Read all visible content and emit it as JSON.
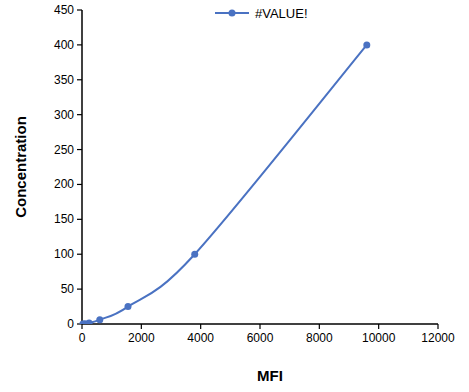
{
  "chart_data": {
    "type": "line",
    "x_label": "MFI",
    "y_label": "Concentration",
    "x": [
      30,
      100,
      240,
      600,
      1550,
      3800,
      9600
    ],
    "series": [
      {
        "name": "#VALUE!",
        "color": "#4a72c2",
        "marker": "circle",
        "values": [
          0,
          0.39,
          1.56,
          6.25,
          25,
          100,
          400
        ]
      }
    ],
    "xlim": [
      0,
      12000
    ],
    "ylim": [
      0,
      450
    ],
    "xticks": [
      0,
      2000,
      4000,
      6000,
      8000,
      10000,
      12000
    ],
    "yticks": [
      0,
      50,
      100,
      150,
      200,
      250,
      300,
      350,
      400,
      450
    ],
    "legend": "top",
    "grid": false
  }
}
